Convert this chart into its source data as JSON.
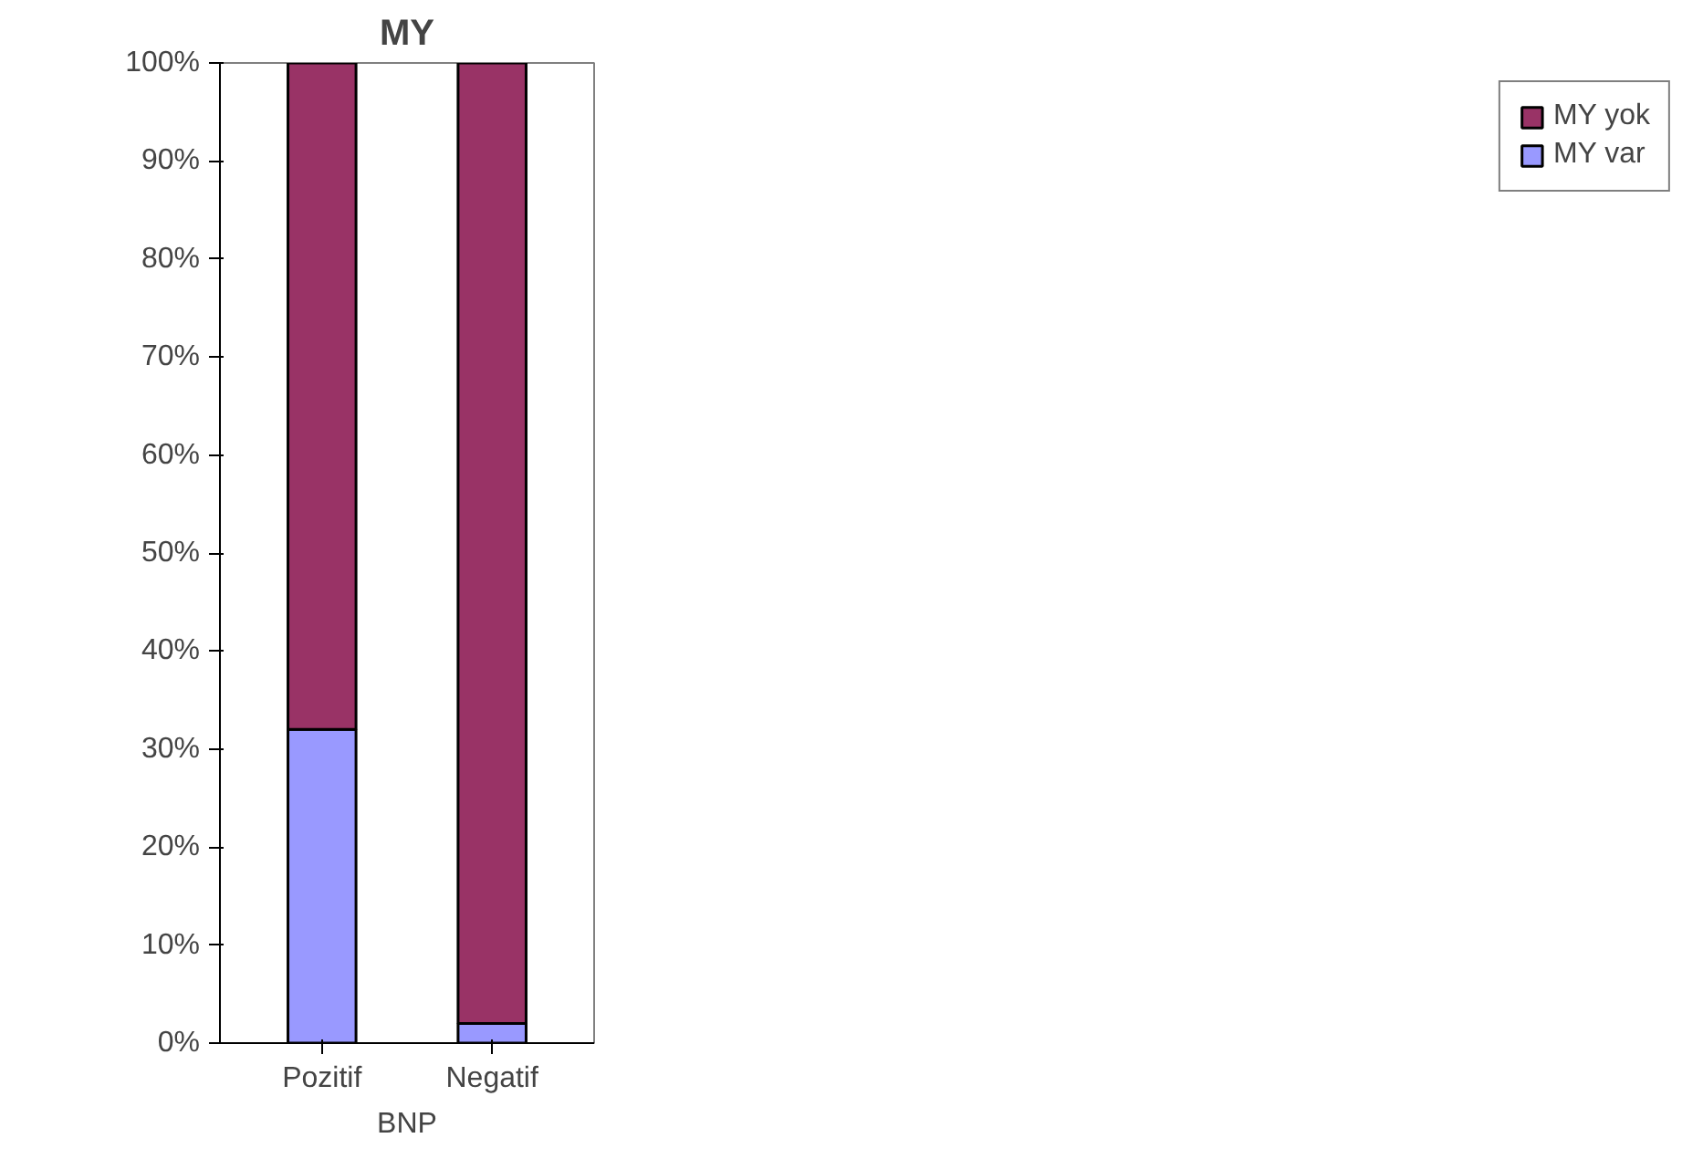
{
  "chart_data": {
    "type": "bar",
    "title": "MY",
    "xlabel": "BNP",
    "categories": [
      "Pozitif",
      "Negatif"
    ],
    "stacked": true,
    "series": [
      {
        "name": "MY var",
        "color": "#9999ff",
        "values": [
          32,
          2
        ]
      },
      {
        "name": "MY yok",
        "color": "#993366",
        "values": [
          68,
          98
        ]
      }
    ],
    "ylim": [
      0,
      100
    ],
    "yticks": [
      {
        "value": 0,
        "label": "0%"
      },
      {
        "value": 10,
        "label": "10%"
      },
      {
        "value": 20,
        "label": "20%"
      },
      {
        "value": 30,
        "label": "30%"
      },
      {
        "value": 40,
        "label": "40%"
      },
      {
        "value": 50,
        "label": "50%"
      },
      {
        "value": 60,
        "label": "60%"
      },
      {
        "value": 70,
        "label": "70%"
      },
      {
        "value": 80,
        "label": "80%"
      },
      {
        "value": 90,
        "label": "90%"
      },
      {
        "value": 100,
        "label": "100%"
      }
    ],
    "grid": false,
    "legend": "right"
  }
}
